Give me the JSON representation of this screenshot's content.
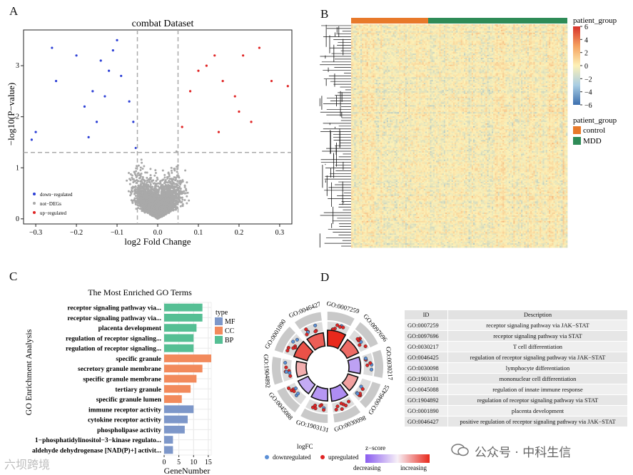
{
  "panel_labels": {
    "a": "A",
    "b": "B",
    "c": "C",
    "d": "D"
  },
  "colors": {
    "down": "#2c3fd6",
    "up": "#e02424",
    "ns": "#a9a9a9",
    "control": "#e8792a",
    "mdd": "#2e8b57",
    "mf": "#7d97c9",
    "cc": "#f28a5c",
    "bp": "#55bf94"
  },
  "chart_data": [
    {
      "type": "scatter",
      "id": "volcano",
      "title": "combat Dataset",
      "xlabel": "log2 Fold Change",
      "ylabel": "−log10(P−value)",
      "xlim": [
        -0.33,
        0.33
      ],
      "ylim": [
        -0.1,
        3.7
      ],
      "xticks": [
        -0.3,
        -0.2,
        -0.1,
        0.0,
        0.1,
        0.2,
        0.3
      ],
      "xtick_labels": [
        "−0.3",
        "−0.2",
        "−0.1",
        "0.0",
        "0.1",
        "0.2",
        "0.3"
      ],
      "yticks": [
        0,
        1,
        2,
        3
      ],
      "ytick_labels": [
        "0",
        "1",
        "2",
        "3"
      ],
      "thresholds": {
        "logfc": [
          -0.05,
          0.05
        ],
        "p": 1.3
      },
      "legend": [
        {
          "label": "down−regulated",
          "color": "#2c3fd6"
        },
        {
          "label": "not−DEGs",
          "color": "#a9a9a9"
        },
        {
          "label": "up−regulated",
          "color": "#e02424"
        }
      ],
      "highlighted_points": {
        "down": [
          [
            -0.3,
            1.7
          ],
          [
            -0.25,
            2.7
          ],
          [
            -0.26,
            3.35
          ],
          [
            -0.2,
            3.2
          ],
          [
            -0.31,
            1.55
          ],
          [
            -0.14,
            3.1
          ],
          [
            -0.1,
            3.5
          ],
          [
            -0.11,
            3.3
          ],
          [
            -0.12,
            2.9
          ],
          [
            -0.16,
            2.5
          ],
          [
            -0.18,
            2.2
          ],
          [
            -0.13,
            2.4
          ],
          [
            -0.09,
            2.8
          ],
          [
            -0.15,
            1.9
          ],
          [
            -0.17,
            1.6
          ],
          [
            -0.07,
            2.3
          ],
          [
            -0.06,
            1.9
          ]
        ],
        "up": [
          [
            0.28,
            2.7
          ],
          [
            0.21,
            3.2
          ],
          [
            0.25,
            3.35
          ],
          [
            0.14,
            3.2
          ],
          [
            0.12,
            3.0
          ],
          [
            0.16,
            2.7
          ],
          [
            0.19,
            2.4
          ],
          [
            0.1,
            2.9
          ],
          [
            0.2,
            2.1
          ],
          [
            0.23,
            1.9
          ],
          [
            0.15,
            1.7
          ],
          [
            0.08,
            2.5
          ],
          [
            0.06,
            1.8
          ],
          [
            0.32,
            2.6
          ]
        ]
      },
      "note": "background cloud of ~3000 genes approximated procedurally"
    },
    {
      "type": "heatmap",
      "id": "heatmap",
      "annotation_title": "patient_group",
      "groups": [
        {
          "label": "control",
          "color": "#e8792a",
          "fraction": 0.27
        },
        {
          "label": "MDD",
          "color": "#2e8b57",
          "fraction": 0.73
        }
      ],
      "scale_ticks": [
        6,
        4,
        2,
        0,
        -2,
        -4,
        -6
      ],
      "scale_tick_labels": [
        "6",
        "4",
        "2",
        "0",
        "−2",
        "−4",
        "−6"
      ],
      "scale_colors": [
        "#d7322b",
        "#fdf1b7",
        "#3c6fae"
      ],
      "rows": 160,
      "cols": 140
    },
    {
      "type": "bar",
      "id": "go_bars",
      "title": "The Most Enriched GO Terms",
      "xlabel": "GeneNumber",
      "ylabel": "GO Enrichment Analysis",
      "xticks": [
        0,
        5,
        10,
        15
      ],
      "xlim": [
        0,
        16
      ],
      "legend_title": "type",
      "legend": [
        {
          "label": "MF",
          "color": "#7d97c9"
        },
        {
          "label": "CC",
          "color": "#f28a5c"
        },
        {
          "label": "BP",
          "color": "#55bf94"
        }
      ],
      "categories": [
        "receptor signaling pathway via...",
        "receptor signaling pathway via...",
        "placenta development",
        "regulation of receptor signaling...",
        "regulation of receptor signaling...",
        "specific granule",
        "secretory granule membrane",
        "specific granule membrane",
        "tertiary granule",
        "specific granule lumen",
        "immune receptor activity",
        "cytokine receptor activity",
        "phospholipase activity",
        "1−phosphatidylinositol−3−kinase regulato...",
        "aldehyde dehydrogenase [NAD(P)+] activit..."
      ],
      "values": [
        13,
        13,
        11,
        10,
        10,
        16,
        13,
        11,
        9,
        6,
        10,
        8,
        7,
        3,
        3
      ],
      "types": [
        "BP",
        "BP",
        "BP",
        "BP",
        "BP",
        "CC",
        "CC",
        "CC",
        "CC",
        "CC",
        "MF",
        "MF",
        "MF",
        "MF",
        "MF"
      ]
    },
    {
      "type": "circos",
      "id": "go_circle",
      "terms": [
        "GO:0007259",
        "GO:0097696",
        "GO:0030217",
        "GO:0046425",
        "GO:0030098",
        "GO:1903131",
        "GO:0045088",
        "GO:1904892",
        "GO:0001890",
        "GO:0046427"
      ],
      "logfc_legend_title": "logFC",
      "logfc_legend": [
        {
          "label": "downregulated",
          "color": "#5b8fd6"
        },
        {
          "label": "upregulated",
          "color": "#e02424"
        }
      ],
      "zscore_title": "z−score",
      "zscore_labels": [
        "decreasing",
        "increasing"
      ],
      "zscores": [
        1.5,
        1.0,
        -0.8,
        0.6,
        -1.0,
        -0.9,
        -0.7,
        0.5,
        1.2,
        1.1
      ]
    }
  ],
  "go_table": {
    "headers": [
      "ID",
      "Description"
    ],
    "rows": [
      {
        "id": "GO:0007259",
        "desc": "receptor signaling pathway via JAK−STAT"
      },
      {
        "id": "GO:0097696",
        "desc": "receptor signaling pathway via STAT"
      },
      {
        "id": "GO:0030217",
        "desc": "T cell differentiation"
      },
      {
        "id": "GO:0046425",
        "desc": "regulation of receptor signaling pathway via JAK−STAT"
      },
      {
        "id": "GO:0030098",
        "desc": "lymphocyte differentiation"
      },
      {
        "id": "GO:1903131",
        "desc": "mononuclear cell differentiation"
      },
      {
        "id": "GO:0045088",
        "desc": "regulation of innate immune response"
      },
      {
        "id": "GO:1904892",
        "desc": "regulation of receptor signaling pathway via STAT"
      },
      {
        "id": "GO:0001890",
        "desc": "placenta development"
      },
      {
        "id": "GO:0046427",
        "desc": "positive regulation of receptor signaling pathway via JAK−STAT"
      }
    ]
  },
  "watermarks": {
    "left": "六坝跨境",
    "right": "公众号 · 中科生信"
  }
}
